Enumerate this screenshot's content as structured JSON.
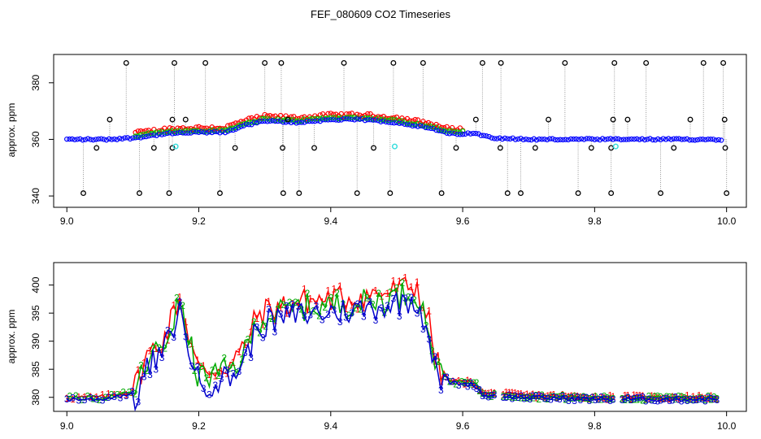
{
  "title": "FEF_080609  CO2 Timeseries",
  "chart_data": [
    {
      "type": "scatter",
      "ylabel": "approx. ppm",
      "xlim": [
        8.98,
        10.03
      ],
      "ylim": [
        336,
        390
      ],
      "xticks": [
        "9.0",
        "9.2",
        "9.4",
        "9.6",
        "9.8",
        "10.0"
      ],
      "xtick_values": [
        9.0,
        9.2,
        9.4,
        9.6,
        9.8,
        10.0
      ],
      "yticks": [
        "340",
        "360",
        "380"
      ],
      "ytick_values": [
        340,
        360,
        380
      ],
      "colors": {
        "red": "#ff0000",
        "green": "#00cc00",
        "blue": "#0000ff",
        "black": "#000000",
        "cyan": "#33dddd",
        "connector": "#999999"
      },
      "base_profile": [
        [
          9.0,
          360
        ],
        [
          9.06,
          360
        ],
        [
          9.1,
          360.5
        ],
        [
          9.15,
          362
        ],
        [
          9.2,
          362.5
        ],
        [
          9.24,
          362.5
        ],
        [
          9.27,
          365
        ],
        [
          9.3,
          366.5
        ],
        [
          9.35,
          366
        ],
        [
          9.4,
          367
        ],
        [
          9.45,
          367
        ],
        [
          9.5,
          366
        ],
        [
          9.55,
          364
        ],
        [
          9.58,
          362
        ],
        [
          9.62,
          362
        ],
        [
          9.65,
          360.5
        ],
        [
          9.7,
          360
        ],
        [
          10.0,
          360
        ]
      ],
      "outliers_high": [
        9.09,
        9.163,
        9.21,
        9.3,
        9.325,
        9.42,
        9.495,
        9.54,
        9.63,
        9.658,
        9.755,
        9.83,
        9.878,
        9.965,
        9.995
      ],
      "outliers_mid_high": [
        9.065,
        9.16,
        9.18,
        9.335,
        9.62,
        9.73,
        9.828,
        9.85,
        9.945,
        9.997
      ],
      "outliers_mid_low": [
        9.045,
        9.132,
        9.16,
        9.255,
        9.327,
        9.375,
        9.465,
        9.59,
        9.657,
        9.71,
        9.795,
        9.825,
        9.92,
        9.998
      ],
      "outliers_low": [
        9.025,
        9.11,
        9.155,
        9.232,
        9.328,
        9.352,
        9.44,
        9.49,
        9.568,
        9.668,
        9.688,
        9.775,
        9.825,
        9.9,
        10.0
      ],
      "cyan_points": [
        [
          9.165,
          357.5
        ],
        [
          9.497,
          357.5
        ],
        [
          9.832,
          357.5
        ]
      ]
    },
    {
      "type": "line",
      "ylabel": "approx. ppm",
      "xlim": [
        8.98,
        10.03
      ],
      "ylim": [
        377.5,
        404
      ],
      "xticks": [
        "9.0",
        "9.2",
        "9.4",
        "9.6",
        "9.8",
        "10.0"
      ],
      "xtick_values": [
        9.0,
        9.2,
        9.4,
        9.6,
        9.8,
        10.0
      ],
      "yticks": [
        "380",
        "385",
        "390",
        "395",
        "400"
      ],
      "ytick_values": [
        380,
        385,
        390,
        395,
        400
      ],
      "series": [
        {
          "name": "1",
          "color": "#ff0000",
          "offset": 0.0
        },
        {
          "name": "2",
          "color": "#00aa00",
          "offset": -1.1
        },
        {
          "name": "3",
          "color": "#0000cc",
          "offset": -2.3
        }
      ],
      "series1_profile": [
        [
          9.0,
          380
        ],
        [
          9.05,
          380
        ],
        [
          9.1,
          381
        ],
        [
          9.12,
          387
        ],
        [
          9.15,
          391
        ],
        [
          9.17,
          398
        ],
        [
          9.19,
          389
        ],
        [
          9.2,
          384.5
        ],
        [
          9.22,
          385
        ],
        [
          9.25,
          386
        ],
        [
          9.27,
          389
        ],
        [
          9.29,
          395
        ],
        [
          9.32,
          396
        ],
        [
          9.35,
          397
        ],
        [
          9.4,
          397.5
        ],
        [
          9.45,
          398
        ],
        [
          9.5,
          399
        ],
        [
          9.53,
          400
        ],
        [
          9.55,
          393
        ],
        [
          9.56,
          386
        ],
        [
          9.58,
          383
        ],
        [
          9.62,
          382.5
        ],
        [
          9.63,
          380.7
        ],
        [
          9.7,
          380.3
        ],
        [
          9.8,
          380
        ],
        [
          9.9,
          380
        ],
        [
          9.99,
          380
        ]
      ],
      "gap": [
        9.65,
        9.66
      ],
      "gap2": [
        9.83,
        9.84
      ]
    }
  ]
}
